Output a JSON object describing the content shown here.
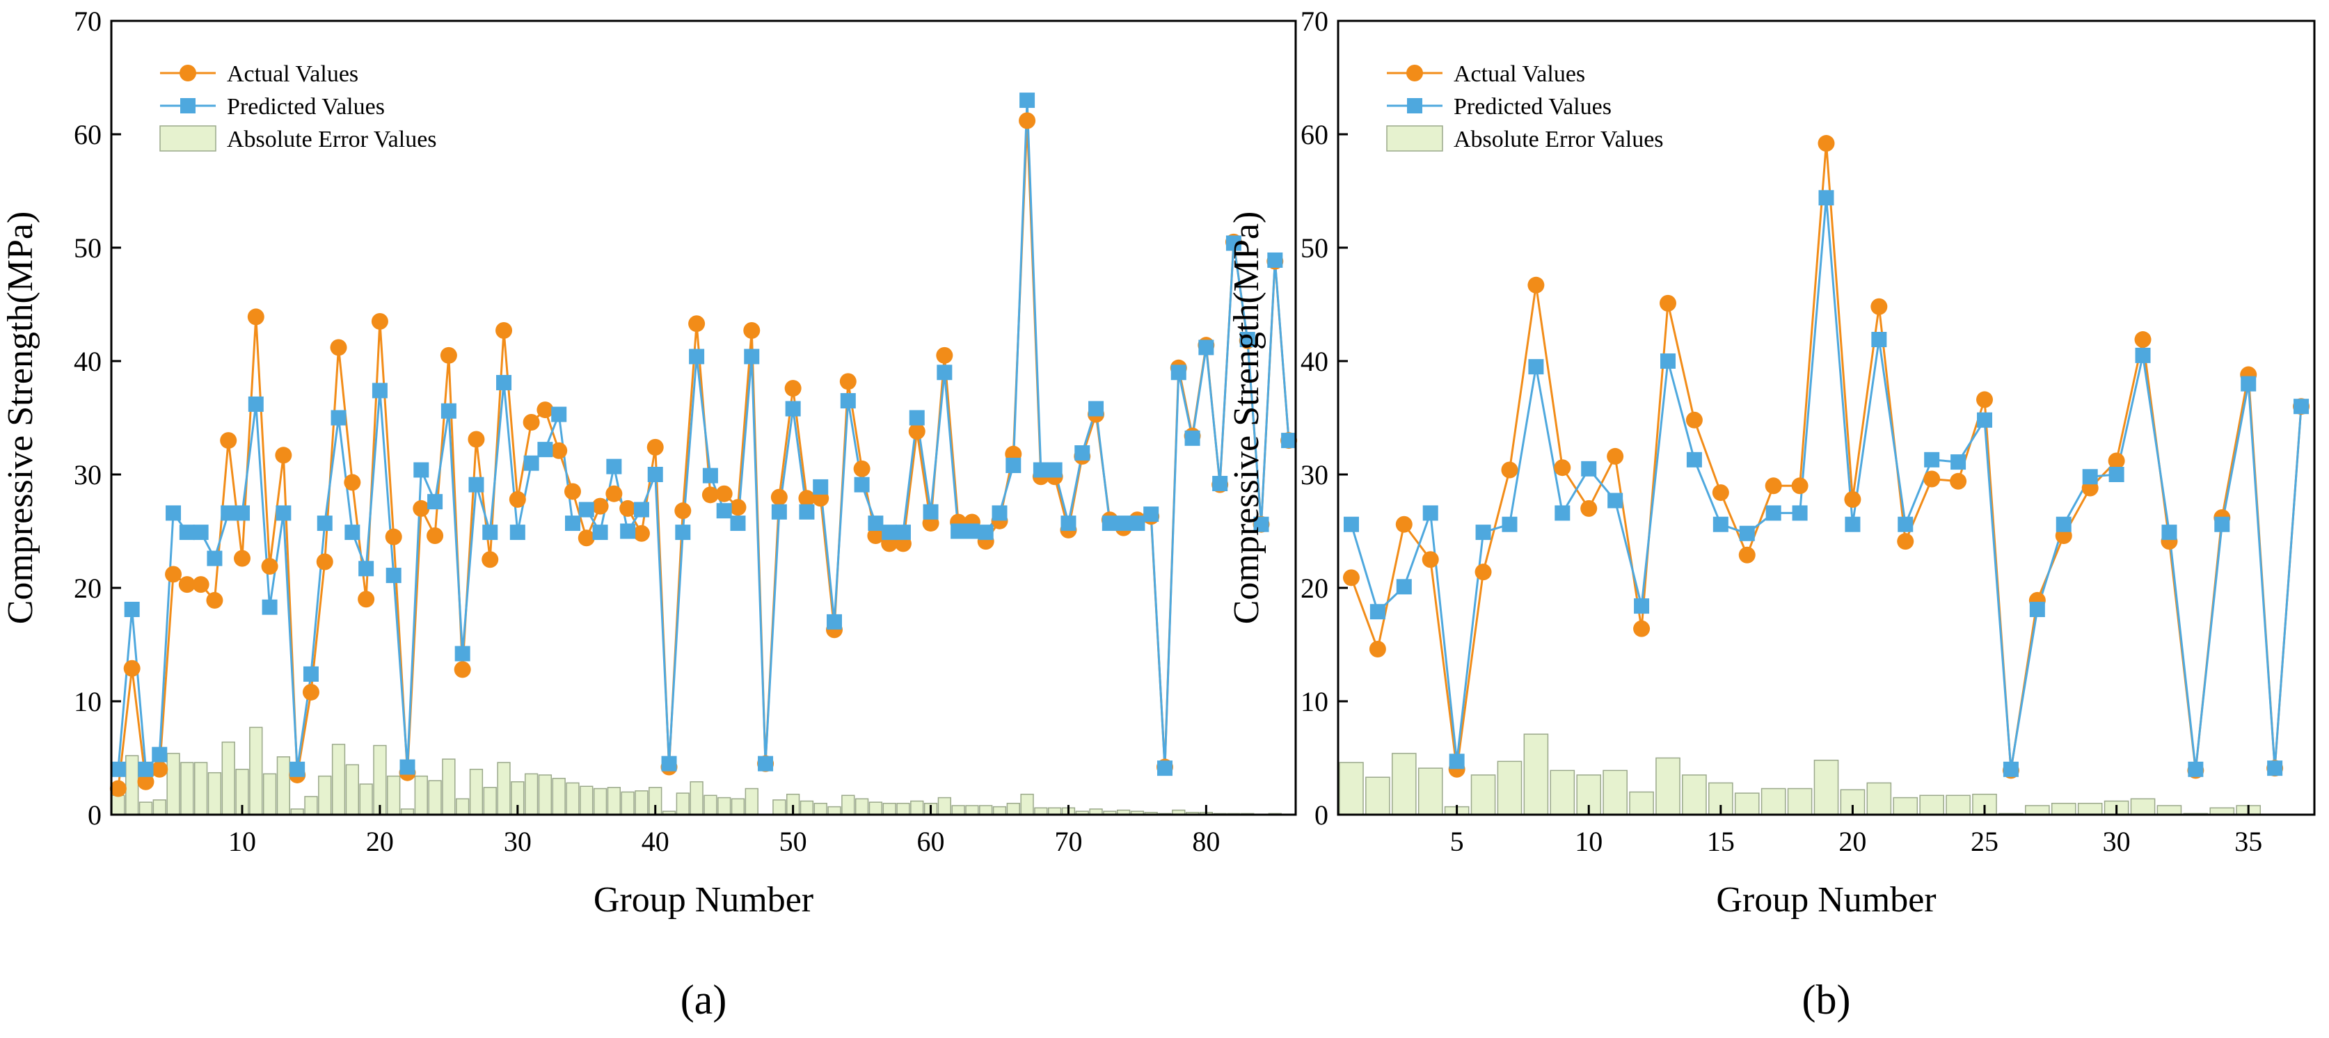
{
  "colors": {
    "actual": "#F28C18",
    "predicted": "#4EA8DE",
    "error_fill": "#E6F2CF",
    "error_stroke": "#9AA88A",
    "axis": "#000000"
  },
  "chart_data": [
    {
      "id": "a",
      "type": "line",
      "panel_label": "(a)",
      "title": "",
      "xlabel": "Group Number",
      "ylabel": "Compressive Strength(MPa)",
      "xlim": [
        0.5,
        86.5
      ],
      "ylim": [
        0,
        70
      ],
      "xticks": [
        10,
        20,
        30,
        40,
        50,
        60,
        70,
        80
      ],
      "yticks": [
        0,
        10,
        20,
        30,
        40,
        50,
        60,
        70
      ],
      "grid": false,
      "legend_position": "top-left",
      "legend": [
        "Actual Values",
        "Predicted Values",
        "Absolute Error Values"
      ],
      "series": [
        {
          "name": "Actual Values",
          "values": [
            2.3,
            12.9,
            2.9,
            4.0,
            21.2,
            20.3,
            20.3,
            18.9,
            33.0,
            22.6,
            43.9,
            21.9,
            31.7,
            3.5,
            10.8,
            22.3,
            41.2,
            29.3,
            19.0,
            43.5,
            24.5,
            3.7,
            27.0,
            24.6,
            40.5,
            12.8,
            33.1,
            22.5,
            42.7,
            27.8,
            34.6,
            35.7,
            32.1,
            28.5,
            24.4,
            27.2,
            28.3,
            27.0,
            24.8,
            32.4,
            4.2,
            26.8,
            43.3,
            28.2,
            28.3,
            27.1,
            42.7,
            4.5,
            28.0,
            37.6,
            27.9,
            27.9,
            16.3,
            38.2,
            30.5,
            24.6,
            23.9,
            23.9,
            33.8,
            25.7,
            40.5,
            25.8,
            25.8,
            24.1,
            25.9,
            31.8,
            61.2,
            29.8,
            29.8,
            25.1,
            31.6,
            35.3,
            26.0,
            25.3,
            26.0,
            26.3,
            4.2,
            39.4,
            33.4,
            41.4,
            29.1,
            50.5,
            41.8,
            25.6,
            48.8,
            33.0
          ]
        },
        {
          "name": "Predicted Values",
          "values": [
            4.0,
            18.1,
            4.0,
            5.3,
            26.6,
            24.9,
            24.9,
            22.6,
            26.6,
            26.6,
            36.2,
            18.3,
            26.6,
            4.0,
            12.4,
            25.7,
            35.0,
            24.9,
            21.7,
            37.4,
            21.1,
            4.2,
            30.4,
            27.6,
            35.6,
            14.2,
            29.1,
            24.9,
            38.1,
            24.9,
            31.0,
            32.2,
            35.3,
            25.7,
            26.9,
            24.9,
            30.7,
            25.0,
            26.9,
            30.0,
            4.5,
            24.9,
            40.4,
            29.9,
            26.8,
            25.7,
            40.4,
            4.5,
            26.7,
            35.8,
            26.7,
            28.9,
            17.0,
            36.5,
            29.1,
            25.7,
            24.9,
            24.9,
            35.0,
            26.7,
            39.0,
            25.0,
            25.0,
            24.9,
            26.6,
            30.8,
            63.0,
            30.4,
            30.4,
            25.7,
            31.9,
            35.8,
            25.7,
            25.7,
            25.7,
            26.5,
            4.1,
            39.0,
            33.2,
            41.2,
            29.2,
            50.4,
            41.9,
            25.6,
            48.9,
            33.0
          ]
        },
        {
          "name": "Absolute Error Values",
          "values": [
            1.7,
            5.2,
            1.1,
            1.3,
            5.4,
            4.6,
            4.6,
            3.7,
            6.4,
            4.0,
            7.7,
            3.6,
            5.1,
            0.5,
            1.6,
            3.4,
            6.2,
            4.4,
            2.7,
            6.1,
            3.4,
            0.5,
            3.4,
            3.0,
            4.9,
            1.4,
            4.0,
            2.4,
            4.6,
            2.9,
            3.6,
            3.5,
            3.2,
            2.8,
            2.5,
            2.3,
            2.4,
            2.0,
            2.1,
            2.4,
            0.3,
            1.9,
            2.9,
            1.7,
            1.5,
            1.4,
            2.3,
            0.0,
            1.3,
            1.8,
            1.2,
            1.0,
            0.7,
            1.7,
            1.4,
            1.1,
            1.0,
            1.0,
            1.2,
            1.0,
            1.5,
            0.8,
            0.8,
            0.8,
            0.7,
            1.0,
            1.8,
            0.6,
            0.6,
            0.6,
            0.3,
            0.5,
            0.3,
            0.4,
            0.3,
            0.2,
            0.1,
            0.4,
            0.2,
            0.2,
            0.1,
            0.1,
            0.1,
            0.0,
            0.1,
            0.0
          ]
        }
      ]
    },
    {
      "id": "b",
      "type": "line",
      "panel_label": "(b)",
      "title": "",
      "xlabel": "Group Number",
      "ylabel": "Compressive Strength(MPa)",
      "xlim": [
        0.5,
        37.5
      ],
      "ylim": [
        0,
        70
      ],
      "xticks": [
        5,
        10,
        15,
        20,
        25,
        30,
        35
      ],
      "yticks": [
        0,
        10,
        20,
        30,
        40,
        50,
        60,
        70
      ],
      "grid": false,
      "legend_position": "top-left",
      "legend": [
        "Actual Values",
        "Predicted Values",
        "Absolute Error Values"
      ],
      "series": [
        {
          "name": "Actual Values",
          "values": [
            20.9,
            14.6,
            25.6,
            22.5,
            4.0,
            21.4,
            30.4,
            46.7,
            30.6,
            27.0,
            31.6,
            16.4,
            45.1,
            34.8,
            28.4,
            22.9,
            29.0,
            29.0,
            59.2,
            27.8,
            44.8,
            24.1,
            29.6,
            29.4,
            36.6,
            3.9,
            18.9,
            24.6,
            28.8,
            31.2,
            41.9,
            24.1,
            3.9,
            26.2,
            38.8,
            4.1,
            36.0
          ]
        },
        {
          "name": "Predicted Values",
          "values": [
            25.6,
            17.9,
            20.1,
            26.6,
            4.7,
            24.9,
            25.6,
            39.5,
            26.6,
            30.5,
            27.7,
            18.4,
            40.0,
            31.3,
            25.6,
            24.8,
            26.6,
            26.6,
            54.4,
            25.6,
            41.9,
            25.6,
            31.3,
            31.1,
            34.8,
            4.0,
            18.1,
            25.6,
            29.8,
            30.0,
            40.5,
            24.9,
            4.0,
            25.6,
            38.0,
            4.1,
            36.0
          ]
        },
        {
          "name": "Absolute Error Values",
          "values": [
            4.6,
            3.3,
            5.4,
            4.1,
            0.7,
            3.5,
            4.7,
            7.1,
            3.9,
            3.5,
            3.9,
            2.0,
            5.0,
            3.5,
            2.8,
            1.9,
            2.3,
            2.3,
            4.8,
            2.2,
            2.8,
            1.5,
            1.7,
            1.7,
            1.8,
            0.1,
            0.8,
            1.0,
            1.0,
            1.2,
            1.4,
            0.8,
            0.1,
            0.6,
            0.8,
            0.0,
            0.0
          ]
        }
      ]
    }
  ]
}
